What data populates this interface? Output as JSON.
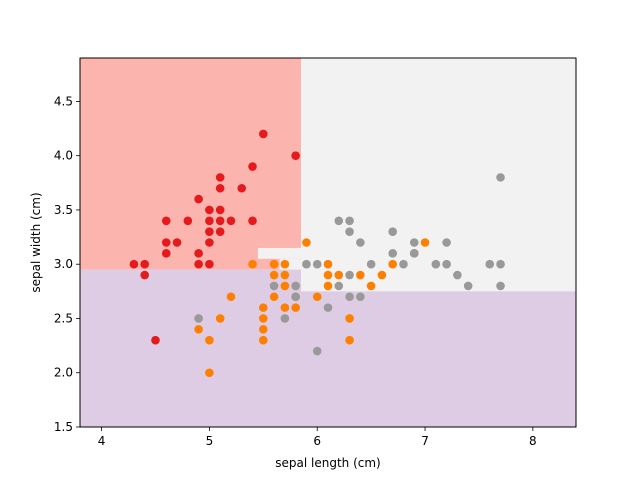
{
  "chart_data": {
    "type": "scatter",
    "title": "",
    "xlabel": "sepal length (cm)",
    "ylabel": "sepal width (cm)",
    "xlim": [
      3.8,
      8.4
    ],
    "ylim": [
      1.5,
      4.9
    ],
    "xticks": [
      "4",
      "5",
      "6",
      "7",
      "8"
    ],
    "yticks": [
      "1.5",
      "2.0",
      "2.5",
      "3.0",
      "3.5",
      "4.0",
      "4.5"
    ],
    "grid": false,
    "legend": "none",
    "decision_regions": [
      {
        "color": "#fbb4ae",
        "x": [
          3.8,
          5.85
        ],
        "y": [
          2.95,
          4.9
        ]
      },
      {
        "color": "#f2f2f2",
        "x": [
          5.85,
          8.4
        ],
        "y": [
          2.75,
          4.9
        ]
      },
      {
        "color": "#f2f2f2",
        "x": [
          5.45,
          5.85
        ],
        "y": [
          3.05,
          3.15
        ]
      },
      {
        "color": "#f2f2f2",
        "x": [
          5.65,
          5.85
        ],
        "y": [
          2.95,
          3.05
        ]
      },
      {
        "color": "#decbe4",
        "x": [
          3.8,
          5.85
        ],
        "y": [
          1.5,
          2.95
        ]
      },
      {
        "color": "#decbe4",
        "x": [
          5.85,
          8.4
        ],
        "y": [
          1.5,
          2.75
        ]
      }
    ],
    "series": [
      {
        "color": "#e41a1c",
        "points": [
          [
            4.3,
            3.0
          ],
          [
            4.4,
            3.0
          ],
          [
            4.4,
            2.9
          ],
          [
            4.5,
            2.3
          ],
          [
            4.6,
            3.4
          ],
          [
            4.6,
            3.2
          ],
          [
            4.6,
            3.1
          ],
          [
            4.7,
            3.2
          ],
          [
            4.8,
            3.4
          ],
          [
            4.9,
            3.6
          ],
          [
            4.9,
            3.1
          ],
          [
            4.9,
            3.0
          ],
          [
            5.0,
            3.5
          ],
          [
            5.0,
            3.4
          ],
          [
            5.0,
            3.3
          ],
          [
            5.0,
            3.2
          ],
          [
            5.0,
            3.0
          ],
          [
            5.1,
            3.8
          ],
          [
            5.1,
            3.7
          ],
          [
            5.1,
            3.5
          ],
          [
            5.1,
            3.4
          ],
          [
            5.1,
            3.3
          ],
          [
            5.2,
            3.4
          ],
          [
            5.3,
            3.7
          ],
          [
            5.4,
            3.9
          ],
          [
            5.4,
            3.4
          ],
          [
            5.5,
            4.2
          ],
          [
            5.8,
            4.0
          ]
        ]
      },
      {
        "color": "#ff7f00",
        "points": [
          [
            4.9,
            2.4
          ],
          [
            5.0,
            2.3
          ],
          [
            5.0,
            2.0
          ],
          [
            5.1,
            2.5
          ],
          [
            5.2,
            2.7
          ],
          [
            5.4,
            3.0
          ],
          [
            5.5,
            2.6
          ],
          [
            5.5,
            2.5
          ],
          [
            5.5,
            2.4
          ],
          [
            5.5,
            2.3
          ],
          [
            5.6,
            3.0
          ],
          [
            5.6,
            2.9
          ],
          [
            5.6,
            2.7
          ],
          [
            5.7,
            3.0
          ],
          [
            5.7,
            2.9
          ],
          [
            5.7,
            2.8
          ],
          [
            5.7,
            2.6
          ],
          [
            5.8,
            2.7
          ],
          [
            5.8,
            2.6
          ],
          [
            5.9,
            3.2
          ],
          [
            6.0,
            2.7
          ],
          [
            6.1,
            3.0
          ],
          [
            6.1,
            2.9
          ],
          [
            6.1,
            2.8
          ],
          [
            6.2,
            2.9
          ],
          [
            6.3,
            2.5
          ],
          [
            6.3,
            2.3
          ],
          [
            6.4,
            2.9
          ],
          [
            6.5,
            2.8
          ],
          [
            6.6,
            2.9
          ],
          [
            6.7,
            3.0
          ],
          [
            6.9,
            3.1
          ],
          [
            7.0,
            3.2
          ]
        ]
      },
      {
        "color": "#999999",
        "points": [
          [
            4.9,
            2.5
          ],
          [
            5.6,
            2.8
          ],
          [
            5.7,
            2.5
          ],
          [
            5.8,
            2.8
          ],
          [
            5.8,
            2.7
          ],
          [
            5.9,
            3.0
          ],
          [
            6.0,
            3.0
          ],
          [
            6.0,
            2.2
          ],
          [
            6.1,
            2.6
          ],
          [
            6.2,
            3.4
          ],
          [
            6.2,
            2.8
          ],
          [
            6.3,
            3.4
          ],
          [
            6.3,
            3.3
          ],
          [
            6.3,
            2.9
          ],
          [
            6.3,
            2.7
          ],
          [
            6.4,
            3.2
          ],
          [
            6.4,
            2.7
          ],
          [
            6.5,
            3.0
          ],
          [
            6.7,
            3.3
          ],
          [
            6.7,
            3.1
          ],
          [
            6.8,
            3.0
          ],
          [
            6.9,
            3.2
          ],
          [
            6.9,
            3.1
          ],
          [
            7.1,
            3.0
          ],
          [
            7.2,
            3.2
          ],
          [
            7.2,
            3.0
          ],
          [
            7.3,
            2.9
          ],
          [
            7.4,
            2.8
          ],
          [
            7.6,
            3.0
          ],
          [
            7.7,
            3.8
          ],
          [
            7.7,
            3.0
          ],
          [
            7.7,
            2.8
          ]
        ]
      }
    ]
  }
}
